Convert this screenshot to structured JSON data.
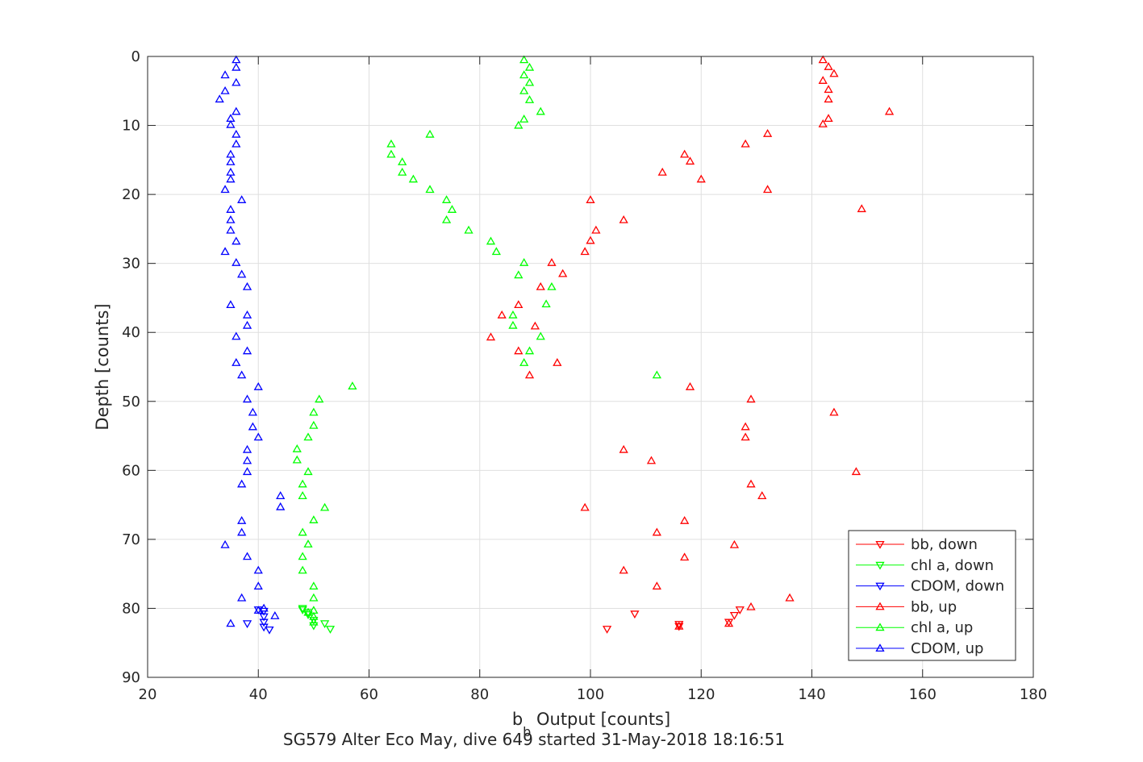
{
  "chart_data": {
    "type": "scatter",
    "title": "",
    "xlabel_main": "b",
    "xlabel_sub": "b",
    "xlabel_rest": " Output [counts]",
    "ylabel": "Depth [counts]",
    "caption": "SG579 Alter Eco May, dive 649 started 31-May-2018 18:16:51",
    "xlim": [
      20,
      180
    ],
    "ylim": [
      0,
      90
    ],
    "y_reversed": true,
    "grid": true,
    "legend_position": "bottom-right",
    "xticks": [
      "20",
      "40",
      "60",
      "80",
      "100",
      "120",
      "140",
      "160",
      "180"
    ],
    "yticks": [
      "0",
      "10",
      "20",
      "30",
      "40",
      "50",
      "60",
      "70",
      "80",
      "90"
    ],
    "series": [
      {
        "name": "bb, down",
        "color": "#ff0000",
        "marker": "triangle-down",
        "points": [
          [
            108,
            80.8
          ],
          [
            103,
            83.0
          ],
          [
            116,
            82.3
          ],
          [
            116,
            82.6
          ],
          [
            125,
            82.0
          ],
          [
            126,
            81.0
          ],
          [
            127,
            80.2
          ]
        ]
      },
      {
        "name": "chl a, down",
        "color": "#00ff00",
        "marker": "triangle-down",
        "points": [
          [
            48,
            80.2
          ],
          [
            49,
            80.6
          ],
          [
            49,
            80.9
          ],
          [
            50,
            81.7
          ],
          [
            50,
            82.5
          ],
          [
            52,
            82.2
          ],
          [
            53,
            83.0
          ],
          [
            48,
            80.0
          ]
        ]
      },
      {
        "name": "CDOM, down",
        "color": "#0000ff",
        "marker": "triangle-down",
        "points": [
          [
            40,
            80.2
          ],
          [
            41,
            80.4
          ],
          [
            41,
            81.2
          ],
          [
            41,
            82.0
          ],
          [
            38,
            82.2
          ],
          [
            41,
            82.7
          ],
          [
            42,
            83.1
          ]
        ]
      },
      {
        "name": "bb, up",
        "color": "#ff0000",
        "marker": "triangle-up",
        "points": [
          [
            142,
            0.5
          ],
          [
            143,
            1.5
          ],
          [
            144,
            2.5
          ],
          [
            142,
            3.5
          ],
          [
            143,
            4.8
          ],
          [
            143,
            6.2
          ],
          [
            154,
            8.0
          ],
          [
            143,
            9.0
          ],
          [
            142,
            9.8
          ],
          [
            132,
            11.2
          ],
          [
            128,
            12.7
          ],
          [
            117,
            14.2
          ],
          [
            118,
            15.2
          ],
          [
            113,
            16.8
          ],
          [
            120,
            17.8
          ],
          [
            132,
            19.3
          ],
          [
            100,
            20.8
          ],
          [
            149,
            22.1
          ],
          [
            106,
            23.7
          ],
          [
            101,
            25.2
          ],
          [
            100,
            26.7
          ],
          [
            99,
            28.3
          ],
          [
            93,
            29.9
          ],
          [
            95,
            31.5
          ],
          [
            91,
            33.4
          ],
          [
            87,
            36.0
          ],
          [
            84,
            37.5
          ],
          [
            90,
            39.1
          ],
          [
            82,
            40.7
          ],
          [
            87,
            42.7
          ],
          [
            94,
            44.4
          ],
          [
            89,
            46.2
          ],
          [
            118,
            47.9
          ],
          [
            129,
            49.7
          ],
          [
            144,
            51.6
          ],
          [
            128,
            53.7
          ],
          [
            128,
            55.2
          ],
          [
            106,
            57.0
          ],
          [
            111,
            58.6
          ],
          [
            148,
            60.2
          ],
          [
            129,
            62.0
          ],
          [
            131,
            63.7
          ],
          [
            99,
            65.4
          ],
          [
            117,
            67.3
          ],
          [
            112,
            69.0
          ],
          [
            126,
            70.8
          ],
          [
            117,
            72.6
          ],
          [
            106,
            74.5
          ],
          [
            112,
            76.8
          ],
          [
            136,
            78.5
          ],
          [
            129,
            79.8
          ],
          [
            125,
            82.2
          ],
          [
            116,
            82.6
          ]
        ]
      },
      {
        "name": "chl a, up",
        "color": "#00ff00",
        "marker": "triangle-up",
        "points": [
          [
            88,
            0.5
          ],
          [
            89,
            1.6
          ],
          [
            88,
            2.7
          ],
          [
            89,
            3.8
          ],
          [
            88,
            5.0
          ],
          [
            89,
            6.3
          ],
          [
            91,
            8.0
          ],
          [
            88,
            9.1
          ],
          [
            87,
            10.0
          ],
          [
            71,
            11.3
          ],
          [
            64,
            12.7
          ],
          [
            64,
            14.2
          ],
          [
            66,
            15.3
          ],
          [
            66,
            16.8
          ],
          [
            68,
            17.8
          ],
          [
            71,
            19.3
          ],
          [
            74,
            20.8
          ],
          [
            75,
            22.2
          ],
          [
            74,
            23.7
          ],
          [
            78,
            25.2
          ],
          [
            82,
            26.8
          ],
          [
            83,
            28.3
          ],
          [
            88,
            29.9
          ],
          [
            87,
            31.7
          ],
          [
            93,
            33.4
          ],
          [
            92,
            35.9
          ],
          [
            86,
            37.5
          ],
          [
            86,
            39.0
          ],
          [
            91,
            40.6
          ],
          [
            89,
            42.7
          ],
          [
            88,
            44.4
          ],
          [
            112,
            46.2
          ],
          [
            57,
            47.8
          ],
          [
            51,
            49.7
          ],
          [
            50,
            51.6
          ],
          [
            50,
            53.5
          ],
          [
            49,
            55.2
          ],
          [
            47,
            56.9
          ],
          [
            47,
            58.5
          ],
          [
            49,
            60.2
          ],
          [
            48,
            62.0
          ],
          [
            48,
            63.7
          ],
          [
            52,
            65.4
          ],
          [
            50,
            67.2
          ],
          [
            48,
            69.0
          ],
          [
            49,
            70.7
          ],
          [
            48,
            72.5
          ],
          [
            48,
            74.5
          ],
          [
            50,
            76.8
          ],
          [
            50,
            78.5
          ],
          [
            50,
            80.3
          ],
          [
            50,
            81.2
          ],
          [
            50,
            82.0
          ],
          [
            49,
            80.6
          ]
        ]
      },
      {
        "name": "CDOM, up",
        "color": "#0000ff",
        "marker": "triangle-up",
        "points": [
          [
            36,
            0.5
          ],
          [
            36,
            1.6
          ],
          [
            34,
            2.7
          ],
          [
            36,
            3.8
          ],
          [
            34,
            5.0
          ],
          [
            33,
            6.2
          ],
          [
            36,
            8.0
          ],
          [
            35,
            9.0
          ],
          [
            35,
            9.9
          ],
          [
            36,
            11.3
          ],
          [
            36,
            12.7
          ],
          [
            35,
            14.2
          ],
          [
            35,
            15.3
          ],
          [
            35,
            16.8
          ],
          [
            35,
            17.8
          ],
          [
            34,
            19.3
          ],
          [
            37,
            20.8
          ],
          [
            35,
            22.2
          ],
          [
            35,
            23.7
          ],
          [
            35,
            25.2
          ],
          [
            36,
            26.8
          ],
          [
            34,
            28.3
          ],
          [
            36,
            29.9
          ],
          [
            37,
            31.6
          ],
          [
            38,
            33.4
          ],
          [
            35,
            36.0
          ],
          [
            38,
            37.5
          ],
          [
            38,
            39.0
          ],
          [
            36,
            40.6
          ],
          [
            38,
            42.7
          ],
          [
            36,
            44.4
          ],
          [
            37,
            46.2
          ],
          [
            40,
            47.9
          ],
          [
            38,
            49.7
          ],
          [
            39,
            51.6
          ],
          [
            39,
            53.7
          ],
          [
            40,
            55.2
          ],
          [
            38,
            57.0
          ],
          [
            38,
            58.6
          ],
          [
            38,
            60.2
          ],
          [
            37,
            62.0
          ],
          [
            44,
            63.7
          ],
          [
            44,
            65.3
          ],
          [
            37,
            67.3
          ],
          [
            37,
            69.0
          ],
          [
            34,
            70.8
          ],
          [
            38,
            72.5
          ],
          [
            40,
            74.5
          ],
          [
            40,
            76.8
          ],
          [
            37,
            78.5
          ],
          [
            40,
            80.3
          ],
          [
            43,
            81.1
          ],
          [
            35,
            82.2
          ],
          [
            41,
            80.0
          ]
        ]
      }
    ]
  }
}
